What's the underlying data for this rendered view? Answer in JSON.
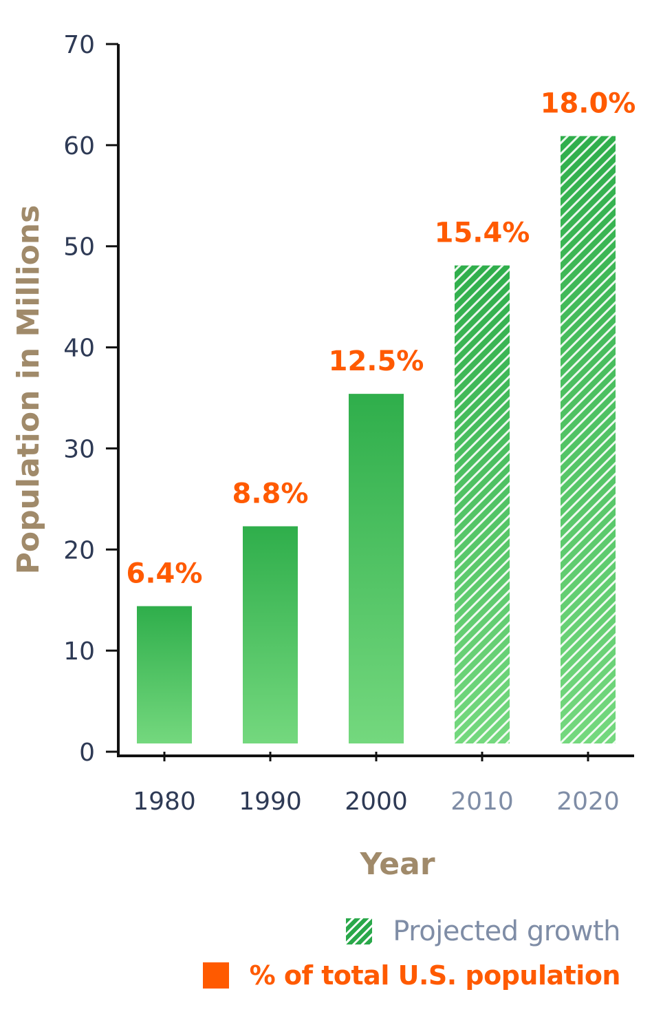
{
  "chart_data": {
    "type": "bar",
    "title": "",
    "xlabel": "Year",
    "ylabel": "Population in Millions",
    "categories": [
      "1980",
      "1990",
      "2000",
      "2010",
      "2020"
    ],
    "values": [
      14.4,
      22.3,
      35.4,
      48.1,
      60.9
    ],
    "data_labels": [
      "6.4%",
      "8.8%",
      "12.5%",
      "15.4%",
      "18.0%"
    ],
    "projected": [
      false,
      false,
      false,
      true,
      true
    ],
    "ylim": [
      0,
      70
    ],
    "yticks": [
      "0",
      "10",
      "20",
      "30",
      "40",
      "50",
      "60",
      "70"
    ],
    "grid": false,
    "legend_position": "bottom-right",
    "legend": {
      "projected_label": "Projected growth",
      "percent_label": "% of total U.S. population"
    }
  },
  "colors": {
    "bar_light": "#74d87e",
    "bar_dark": "#2fae4b",
    "hatch": "#1f9e42",
    "label_orange": "#ff5a00",
    "axis_title": "#a08a6a",
    "tick_label": "#2e3a55",
    "projected_tick_label": "#7f8da6",
    "axis_line": "#111111"
  }
}
